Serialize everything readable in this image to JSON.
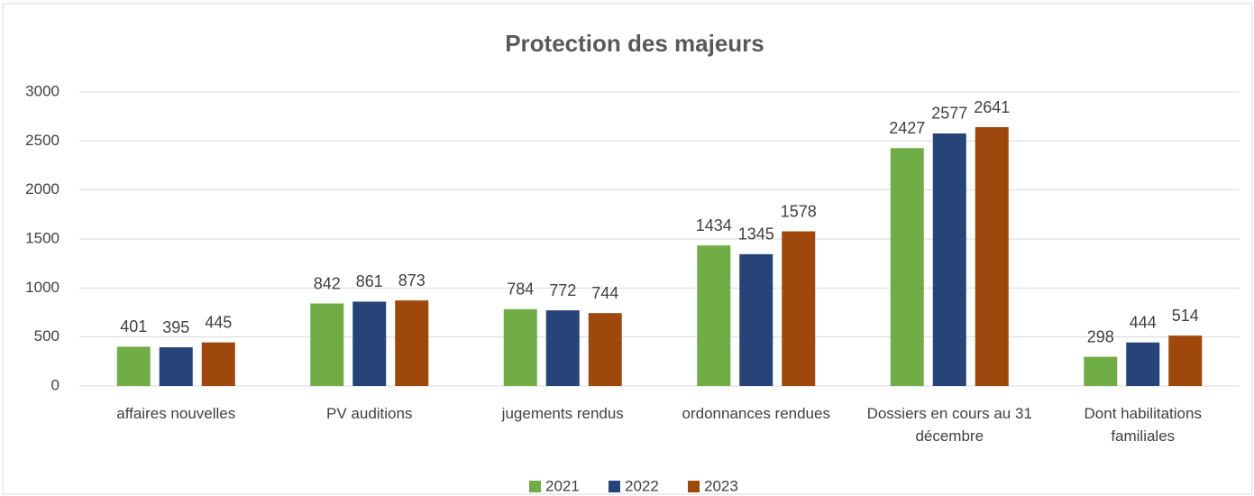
{
  "chart_data": {
    "type": "bar",
    "title": "Protection des majeurs",
    "categories": [
      "affaires nouvelles",
      "PV auditions",
      "jugements rendus",
      "ordonnances rendues",
      "Dossiers en cours au 31 décembre",
      "Dont habilitations familiales"
    ],
    "series": [
      {
        "name": "2021",
        "color": "#70ad47",
        "values": [
          401,
          842,
          784,
          1434,
          2427,
          298
        ]
      },
      {
        "name": "2022",
        "color": "#264478",
        "values": [
          395,
          861,
          772,
          1345,
          2577,
          444
        ]
      },
      {
        "name": "2023",
        "color": "#9e480e",
        "values": [
          445,
          873,
          744,
          1578,
          2641,
          514
        ]
      }
    ],
    "ylim": [
      0,
      3000
    ],
    "yticks": [
      0,
      500,
      1000,
      1500,
      2000,
      2500,
      3000
    ],
    "grid": true,
    "legend": "bottom"
  }
}
